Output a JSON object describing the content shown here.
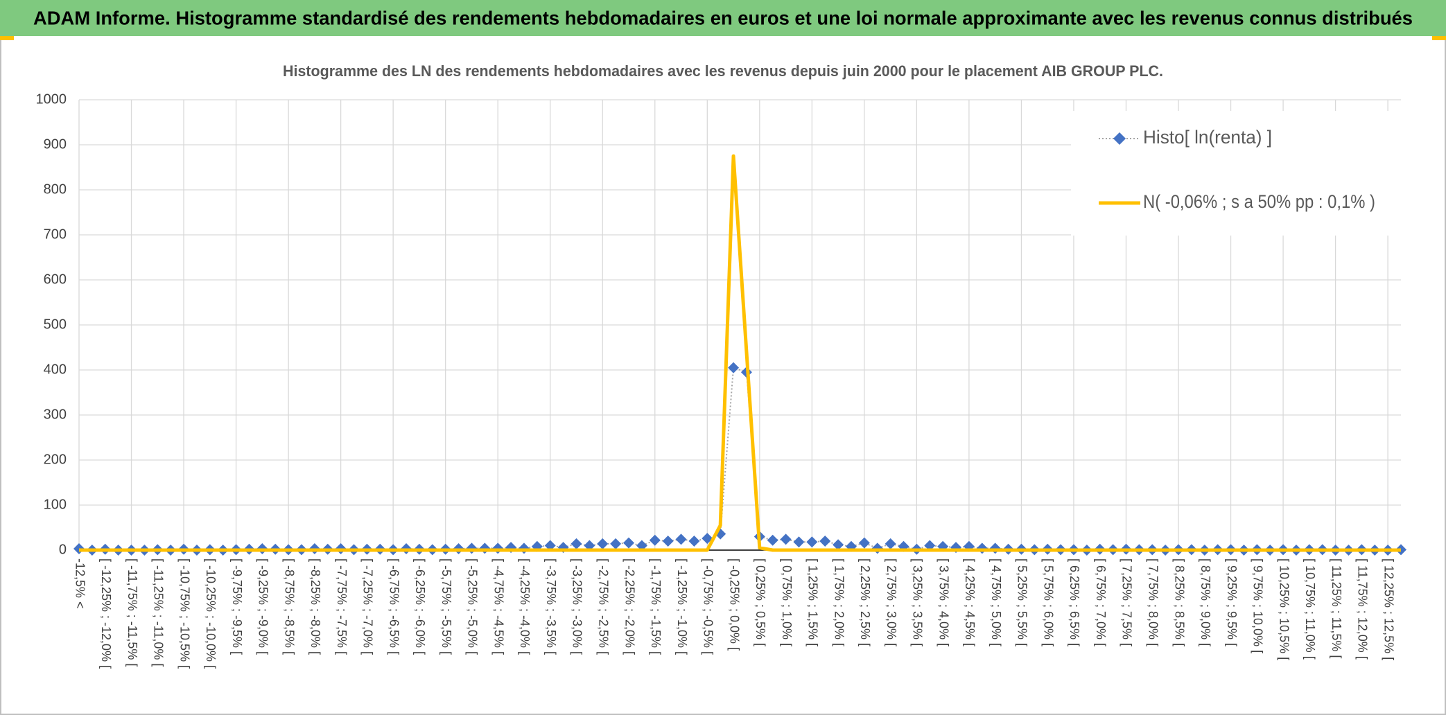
{
  "header": {
    "title": "ADAM Informe. Histogramme standardisé des rendements hebdomadaires en euros et une loi normale approximante avec les revenus connus distribués"
  },
  "chart_data": {
    "type": "line",
    "title": "Histogramme des LN des rendements hebdomadaires avec les revenus depuis juin 2000 pour le placement AIB GROUP PLC.",
    "categories": [
      "-12,5% <",
      null,
      "[ -12,25% ; -12,0% [",
      null,
      "[ -11,75% ; -11,5% [",
      null,
      "[ -11,25% ; -11,0% [",
      null,
      "[ -10,75% ; -10,5% [",
      null,
      "[ -10,25% ; -10,0% [",
      null,
      "[ -9,75% ; -9,5% [",
      null,
      "[ -9,25% ; -9,0% [",
      null,
      "[ -8,75% ; -8,5% [",
      null,
      "[ -8,25% ; -8,0% [",
      null,
      "[ -7,75% ; -7,5% [",
      null,
      "[ -7,25% ; -7,0% [",
      null,
      "[ -6,75% ; -6,5% [",
      null,
      "[ -6,25% ; -6,0% [",
      null,
      "[ -5,75% ; -5,5% [",
      null,
      "[ -5,25% ; -5,0% [",
      null,
      "[ -4,75% ; -4,5% [",
      null,
      "[ -4,25% ; -4,0% [",
      null,
      "[ -3,75% ; -3,5% [",
      null,
      "[ -3,25% ; -3,0% [",
      null,
      "[ -2,75% ; -2,5% [",
      null,
      "[ -2,25% ; -2,0% [",
      null,
      "[ -1,75% ; -1,5% [",
      null,
      "[ -1,25% ; -1,0% [",
      null,
      "[ -0,75% ; -0,5% [",
      null,
      "[ -0,25% ; 0,0% [",
      null,
      "[ 0,25% ; 0,5% [",
      null,
      "[ 0,75% ; 1,0% [",
      null,
      "[ 1,25% ; 1,5% [",
      null,
      "[ 1,75% ; 2,0% [",
      null,
      "[ 2,25% ; 2,5% [",
      null,
      "[ 2,75% ; 3,0% [",
      null,
      "[ 3,25% ; 3,5% [",
      null,
      "[ 3,75% ; 4,0% [",
      null,
      "[ 4,25% ; 4,5% [",
      null,
      "[ 4,75% ; 5,0% [",
      null,
      "[ 5,25% ; 5,5% [",
      null,
      "[ 5,75% ; 6,0% [",
      null,
      "[ 6,25% ; 6,5% [",
      null,
      "[ 6,75% ; 7,0% [",
      null,
      "[ 7,25% ; 7,5% [",
      null,
      "[ 7,75% ; 8,0% [",
      null,
      "[ 8,25% ; 8,5% [",
      null,
      "[ 8,75% ; 9,0% [",
      null,
      "[ 9,25% ; 9,5% [",
      null,
      "[ 9,75% ; 10,0% [",
      null,
      "[ 10,25% ; 10,5% [",
      null,
      "[ 10,75% ; 11,0% [",
      null,
      "[ 11,25% ; 11,5% [",
      null,
      "[ 11,75% ; 12,0% [",
      null,
      "[ 12,25% ; 12,5% [",
      null
    ],
    "series": [
      {
        "name": "Histo[ ln(renta) ]",
        "color": "#4472c4",
        "line_color": "#a5a5a5",
        "values": [
          3,
          0,
          2,
          0,
          0,
          0,
          1,
          0,
          2,
          0,
          1,
          0,
          1,
          2,
          3,
          2,
          1,
          1,
          3,
          2,
          3,
          1,
          2,
          2,
          1,
          3,
          2,
          1,
          2,
          3,
          4,
          4,
          4,
          6,
          4,
          8,
          10,
          6,
          14,
          10,
          14,
          14,
          16,
          10,
          22,
          20,
          24,
          20,
          26,
          36,
          405,
          395,
          30,
          22,
          24,
          18,
          18,
          20,
          12,
          8,
          16,
          4,
          14,
          8,
          2,
          10,
          8,
          6,
          8,
          4,
          4,
          2,
          2,
          1,
          2,
          1,
          1,
          0,
          2,
          1,
          2,
          1,
          1,
          0,
          1,
          1,
          0,
          1,
          1,
          0,
          1,
          0,
          1,
          0,
          1,
          1,
          0,
          0,
          1,
          0,
          0,
          1
        ]
      },
      {
        "name": "N( -0,06% ; s a 50% pp : 0,1% )",
        "color": "#ffc000",
        "values": [
          0,
          0,
          0,
          0,
          0,
          0,
          0,
          0,
          0,
          0,
          0,
          0,
          0,
          0,
          0,
          0,
          0,
          0,
          0,
          0,
          0,
          0,
          0,
          0,
          0,
          0,
          0,
          0,
          0,
          0,
          0,
          0,
          0,
          0,
          0,
          0,
          0,
          0,
          0,
          0,
          0,
          0,
          0,
          0,
          0,
          0,
          0,
          0,
          0,
          55,
          875,
          440,
          5,
          0,
          0,
          0,
          0,
          0,
          0,
          0,
          0,
          0,
          0,
          0,
          0,
          0,
          0,
          0,
          0,
          0,
          0,
          0,
          0,
          0,
          0,
          0,
          0,
          0,
          0,
          0,
          0,
          0,
          0,
          0,
          0,
          0,
          0,
          0,
          0,
          0,
          0,
          0,
          0,
          0,
          0,
          0,
          0,
          0,
          0,
          0,
          0,
          0
        ]
      }
    ],
    "ylim": [
      0,
      1000
    ],
    "yticks": [
      0,
      100,
      200,
      300,
      400,
      500,
      600,
      700,
      800,
      900,
      1000
    ],
    "grid": true,
    "legend": "top-right"
  }
}
